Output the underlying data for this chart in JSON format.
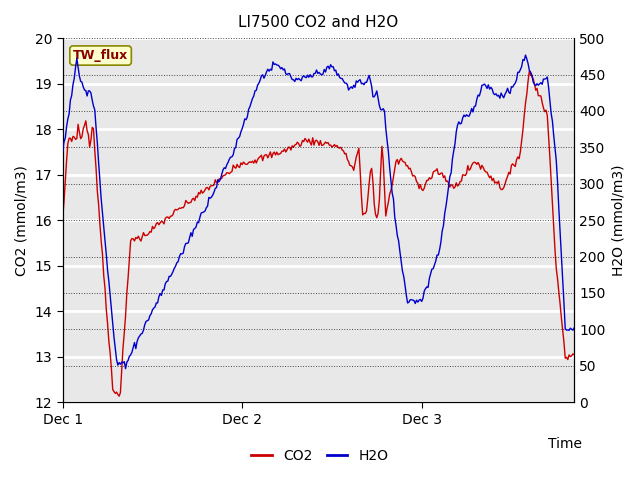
{
  "title": "LI7500 CO2 and H2O",
  "xlabel": "Time",
  "ylabel_left": "CO2 (mmol/m3)",
  "ylabel_right": "H2O (mmol/m3)",
  "co2_color": "#cc0000",
  "h2o_color": "#0000cc",
  "ylim_left": [
    12.0,
    20.0
  ],
  "ylim_right": [
    0,
    500
  ],
  "yticks_left": [
    12.0,
    13.0,
    14.0,
    15.0,
    16.0,
    17.0,
    18.0,
    19.0,
    20.0
  ],
  "yticks_right": [
    0,
    50,
    100,
    150,
    200,
    250,
    300,
    350,
    400,
    450,
    500
  ],
  "xtick_positions": [
    0,
    1,
    2
  ],
  "xtick_labels": [
    "Dec 1",
    "Dec 2",
    "Dec 3"
  ],
  "xlim": [
    0,
    2.85
  ],
  "background_color": "#e8e8e8",
  "annotation_text": "TW_flux",
  "annotation_color": "#880000",
  "annotation_bg": "#ffffcc",
  "legend_co2": "CO2",
  "legend_h2o": "H2O",
  "figsize": [
    6.4,
    4.8
  ],
  "dpi": 100
}
